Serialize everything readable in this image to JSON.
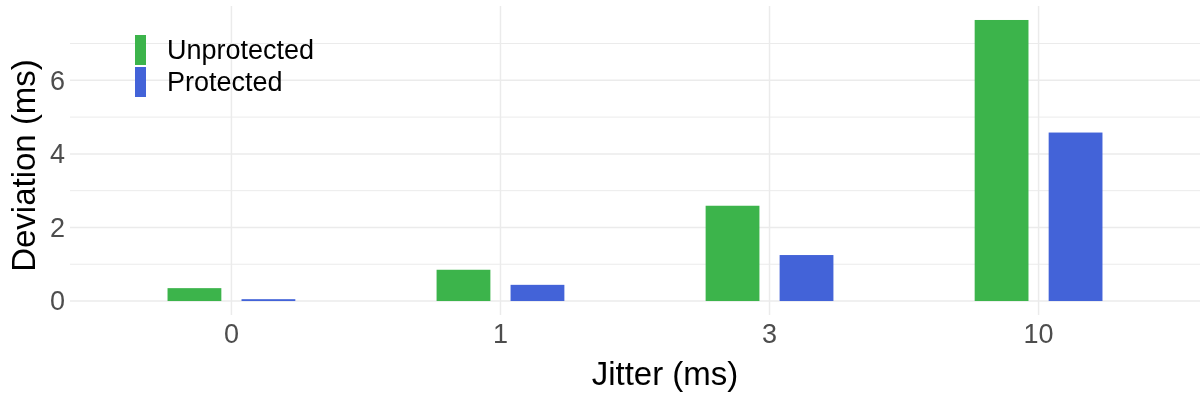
{
  "chart_data": {
    "type": "bar",
    "xlabel": "Jitter (ms)",
    "ylabel": "Deviation (ms)",
    "categories": [
      "0",
      "1",
      "3",
      "10"
    ],
    "series": [
      {
        "name": "Unprotected",
        "color": "#3cb44b",
        "values": [
          0.35,
          0.85,
          2.59,
          7.64
        ]
      },
      {
        "name": "Protected",
        "color": "#4363d8",
        "values": [
          0.05,
          0.44,
          1.25,
          4.58
        ]
      }
    ],
    "ylim": [
      -0.38,
      8.02
    ],
    "yticks": [
      0,
      2,
      4,
      6
    ],
    "grid": true,
    "legend": "top left"
  }
}
